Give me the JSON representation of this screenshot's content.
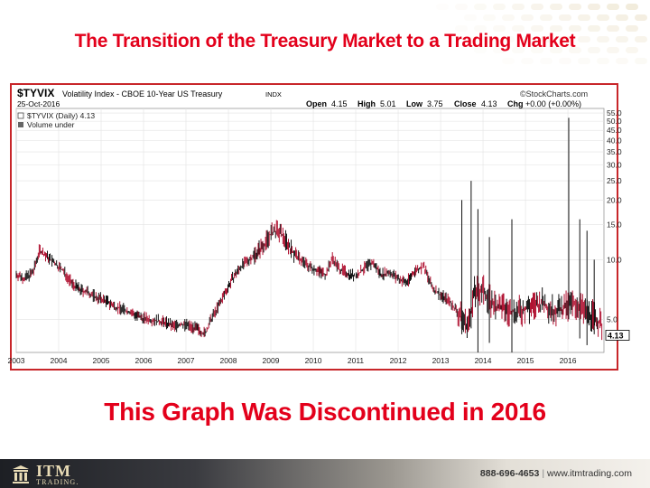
{
  "slide": {
    "title_top": "The Transition of the Treasury Market to a Trading Market",
    "title_bottom": "This Graph Was Discontinued in 2016"
  },
  "footer": {
    "brand": "ITM",
    "brand_sub": "TRADING.",
    "phone": "888-696-4653",
    "separator": "|",
    "website": "www.itmtrading.com"
  },
  "colors": {
    "title_red": "#e3001b",
    "frame_red": "#c8262a",
    "down_bar": "#b01030",
    "up_bar": "#111111"
  },
  "chart_data": {
    "type": "line",
    "symbol": "$TYVIX",
    "description": "Volatility Index - CBOE 10-Year US Treasury",
    "exchange": "INDX",
    "date": "25-Oct-2016",
    "source": "©StockCharts.com",
    "ohlc": {
      "open_label": "Open",
      "open": "4.15",
      "high_label": "High",
      "high": "5.01",
      "low_label": "Low",
      "low": "3.75",
      "close_label": "Close",
      "close": "4.13",
      "chg_label": "Chg",
      "chg": "+0.00 (+0.00%)"
    },
    "legend": [
      {
        "name": "$TYVIX (Daily) 4.13"
      },
      {
        "name": "Volume under"
      }
    ],
    "last_value_label": "4.13",
    "y_scale": "log",
    "ylim": [
      3.4,
      58
    ],
    "y_ticks": [
      "5.0",
      "10.0",
      "15.0",
      "20.0",
      "25.0",
      "30.0",
      "35.0",
      "40.0",
      "45.0",
      "50.0",
      "55.0"
    ],
    "x_ticks": [
      "2003",
      "2004",
      "2005",
      "2006",
      "2007",
      "2008",
      "2009",
      "2010",
      "2011",
      "2012",
      "2013",
      "2014",
      "2015",
      "2016"
    ],
    "xlim": [
      2003.0,
      2016.85
    ],
    "grid": true,
    "series": [
      {
        "x": [
          2003.0,
          2003.2,
          2003.4,
          2003.55,
          2003.7,
          2003.9,
          2004.1,
          2004.3,
          2004.5,
          2004.7,
          2004.9,
          2005.1,
          2005.3,
          2005.5,
          2005.7,
          2005.9,
          2006.1,
          2006.3,
          2006.5,
          2006.7,
          2006.9,
          2007.1,
          2007.3,
          2007.45,
          2007.6,
          2007.8,
          2007.95,
          2008.1,
          2008.3,
          2008.5,
          2008.7,
          2008.85,
          2009.0,
          2009.15,
          2009.3,
          2009.5,
          2009.7,
          2009.9,
          2010.1,
          2010.3,
          2010.45,
          2010.6,
          2010.8,
          2011.0,
          2011.2,
          2011.4,
          2011.6,
          2011.8,
          2012.0,
          2012.2,
          2012.4,
          2012.6,
          2012.8,
          2013.0,
          2013.2,
          2013.35,
          2013.5,
          2013.65,
          2013.8,
          2014.0,
          2014.2,
          2014.4,
          2014.6,
          2014.8,
          2015.0,
          2015.2,
          2015.4,
          2015.6,
          2015.8,
          2016.0,
          2016.2,
          2016.4,
          2016.6,
          2016.8
        ],
        "y": [
          8.4,
          8.0,
          8.6,
          11.2,
          10.4,
          9.6,
          8.8,
          7.6,
          7.0,
          6.8,
          6.4,
          6.2,
          5.8,
          5.6,
          5.4,
          5.1,
          5.0,
          4.9,
          4.8,
          4.6,
          4.7,
          4.6,
          4.4,
          4.2,
          5.0,
          6.0,
          7.0,
          8.0,
          9.2,
          10.0,
          11.0,
          12.0,
          13.5,
          14.0,
          13.0,
          11.0,
          10.0,
          9.2,
          8.8,
          8.4,
          10.2,
          9.0,
          8.5,
          8.2,
          9.0,
          9.6,
          8.4,
          8.6,
          8.0,
          7.6,
          8.8,
          9.2,
          7.2,
          6.6,
          6.2,
          5.6,
          5.0,
          4.6,
          6.8,
          7.0,
          6.0,
          5.7,
          5.5,
          5.4,
          5.6,
          5.8,
          6.0,
          5.6,
          5.5,
          5.8,
          6.0,
          5.4,
          5.2,
          4.6
        ],
        "spikes": [
          {
            "x": 2013.72,
            "high": 25.0,
            "low": 4.5
          },
          {
            "x": 2013.5,
            "high": 20.0,
            "low": 4.2
          },
          {
            "x": 2013.88,
            "high": 18.0,
            "low": 3.4
          },
          {
            "x": 2014.15,
            "high": 13.0,
            "low": 3.8
          },
          {
            "x": 2014.68,
            "high": 16.0,
            "low": 3.4
          },
          {
            "x": 2016.02,
            "high": 52.0,
            "low": 5.0
          },
          {
            "x": 2016.28,
            "high": 16.0,
            "low": 4.0
          },
          {
            "x": 2016.45,
            "high": 14.0,
            "low": 3.7
          },
          {
            "x": 2016.62,
            "high": 10.0,
            "low": 4.2
          }
        ]
      }
    ]
  }
}
